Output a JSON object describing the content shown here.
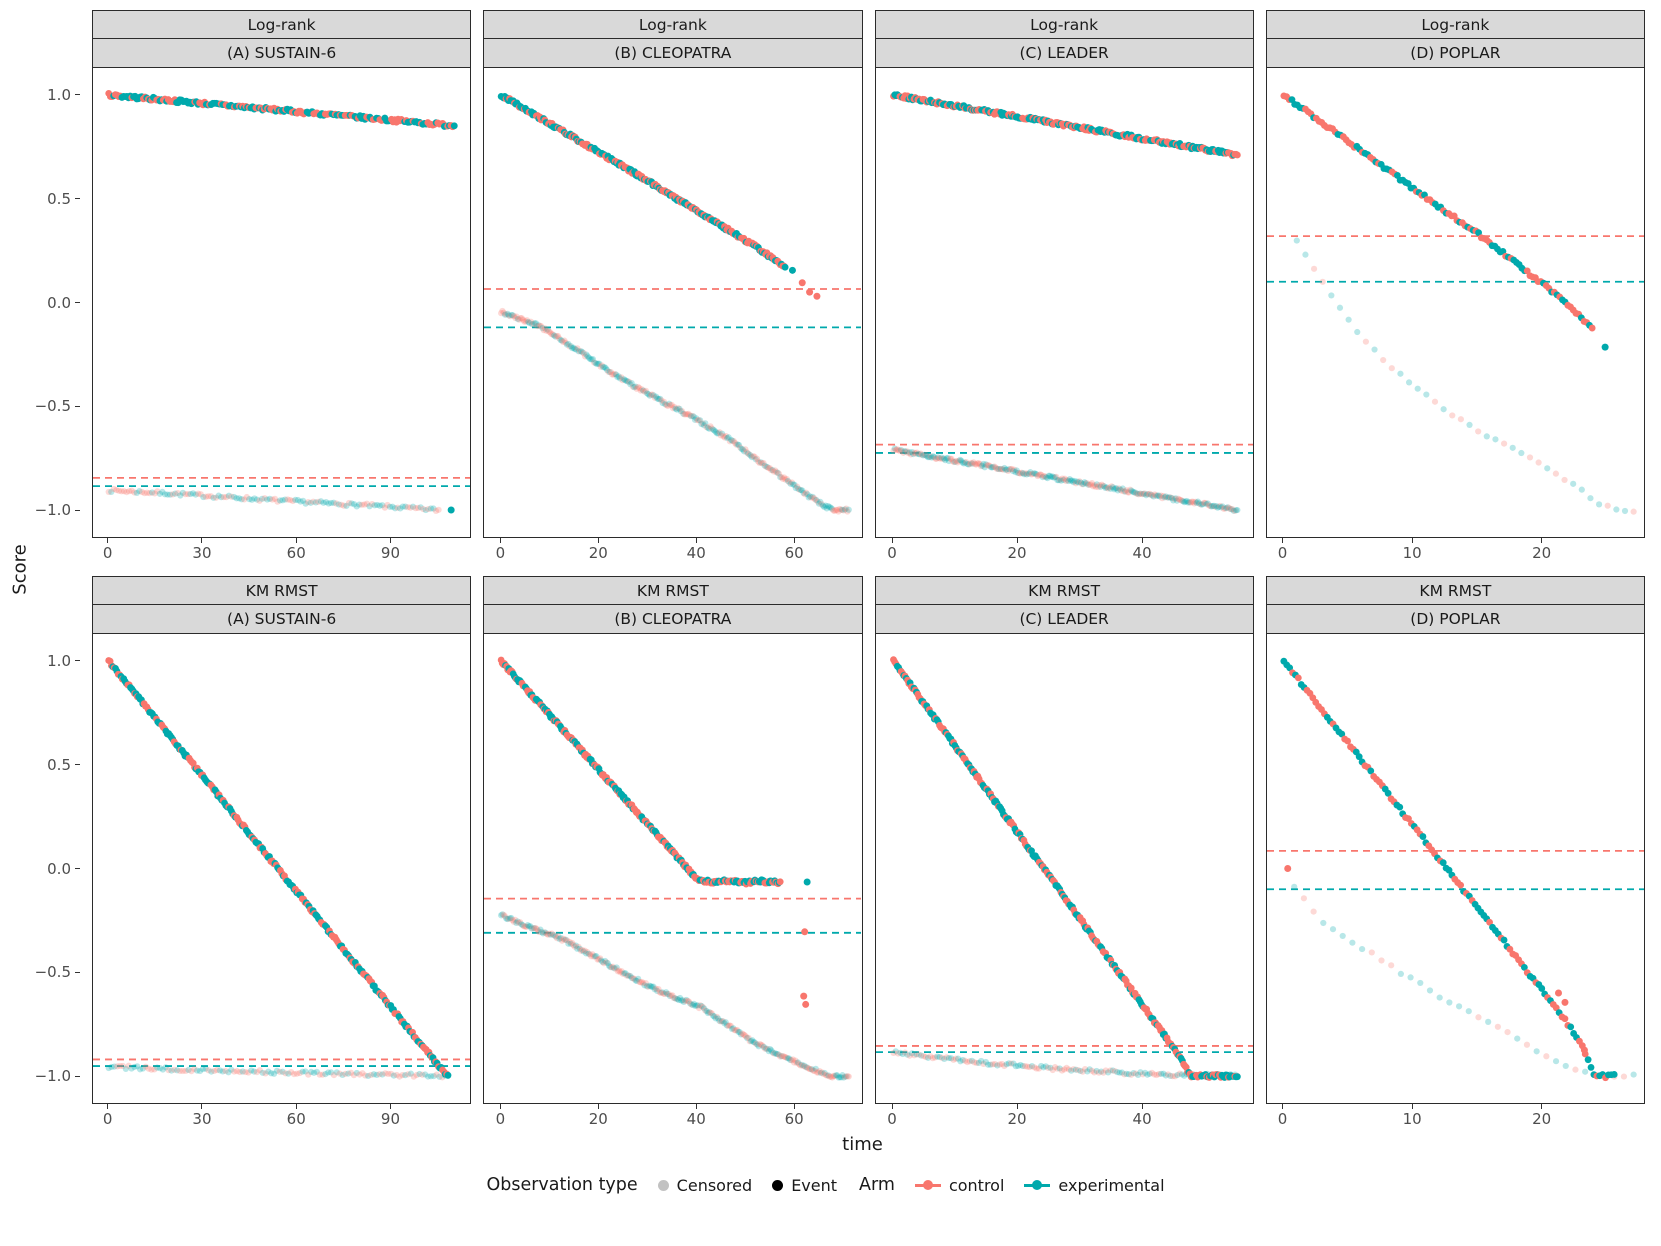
{
  "figure": {
    "y_axis_title": "Score",
    "x_axis_title": "time",
    "colors": {
      "control": "#F8766D",
      "experimental": "#00A9AC",
      "censored_grey": "#9A9A9A",
      "event_black": "#000000",
      "strip_bg": "#D9D9D9",
      "border": "#2B2B2B",
      "tick_text": "#4D4D4D"
    },
    "legend": {
      "obs_title": "Observation type",
      "censored_label": "Censored",
      "event_label": "Event",
      "arm_title": "Arm",
      "control_label": "control",
      "experimental_label": "experimental"
    }
  },
  "chart_data": {
    "type": "scatter",
    "title": "",
    "xlabel": "time",
    "ylabel": "Score",
    "grid": false,
    "legend_position": "bottom",
    "y_ticks": [
      1.0,
      0.5,
      0.0,
      -0.5,
      -1.0
    ],
    "y_range": [
      -1.13,
      1.13
    ],
    "panels": [
      {
        "method": "Log-rank",
        "trial": "(A) SUSTAIN-6",
        "x_range": [
          -5,
          115
        ],
        "x_ticks": [
          0,
          30,
          60,
          90
        ],
        "hline_control": -0.845,
        "hline_experimental": -0.885,
        "events": {
          "path": [
            [
              0,
              1.0
            ],
            [
              110,
              0.852
            ]
          ],
          "n": 210
        },
        "censored": {
          "path": [
            [
              0,
              -0.905
            ],
            [
              25,
              -0.925
            ],
            [
              55,
              -0.955
            ],
            [
              85,
              -0.98
            ],
            [
              105,
              -1.0
            ]
          ],
          "n": 130
        },
        "extra": [
          {
            "t": 109,
            "s": -1.0,
            "arm": "experimental",
            "type": "event"
          }
        ]
      },
      {
        "method": "Log-rank",
        "trial": "(B) CLEOPATRA",
        "x_range": [
          -3.5,
          73.5
        ],
        "x_ticks": [
          0,
          20,
          40,
          60
        ],
        "hline_control": 0.065,
        "hline_experimental": -0.12,
        "events": {
          "path": [
            [
              0,
              1.0
            ],
            [
              30,
              0.585
            ],
            [
              45,
              0.37
            ],
            [
              52,
              0.27
            ],
            [
              58,
              0.17
            ]
          ],
          "n": 235
        },
        "censored": {
          "path": [
            [
              0,
              -0.045
            ],
            [
              8,
              -0.115
            ],
            [
              16,
              -0.235
            ],
            [
              24,
              -0.36
            ],
            [
              32,
              -0.465
            ],
            [
              40,
              -0.565
            ],
            [
              47,
              -0.665
            ],
            [
              53,
              -0.77
            ],
            [
              58,
              -0.85
            ],
            [
              63,
              -0.935
            ],
            [
              66,
              -0.98
            ],
            [
              68,
              -1.0
            ],
            [
              71,
              -1.0
            ]
          ],
          "n": 270
        },
        "extra": [
          {
            "t": 59.5,
            "s": 0.155,
            "arm": "experimental",
            "type": "event"
          },
          {
            "t": 61.5,
            "s": 0.095,
            "arm": "control",
            "type": "event"
          },
          {
            "t": 63,
            "s": 0.05,
            "arm": "control",
            "type": "event"
          },
          {
            "t": 64.5,
            "s": 0.03,
            "arm": "control",
            "type": "event"
          }
        ]
      },
      {
        "method": "Log-rank",
        "trial": "(C) LEADER",
        "x_range": [
          -2.8,
          57.5
        ],
        "x_ticks": [
          0,
          20,
          40
        ],
        "hline_control": -0.685,
        "hline_experimental": -0.725,
        "events": {
          "path": [
            [
              0,
              1.0
            ],
            [
              55,
              0.71
            ]
          ],
          "n": 270
        },
        "censored": {
          "path": [
            [
              0,
              -0.71
            ],
            [
              55,
              -1.0
            ]
          ],
          "n": 280
        },
        "extra": []
      },
      {
        "method": "Log-rank",
        "trial": "(D) POPLAR",
        "x_range": [
          -1.3,
          27.8
        ],
        "x_ticks": [
          0,
          10,
          20
        ],
        "hline_control": 0.32,
        "hline_experimental": 0.1,
        "events": {
          "path": [
            [
              0,
              1.0
            ],
            [
              4,
              0.82
            ],
            [
              8,
              0.64
            ],
            [
              12,
              0.46
            ],
            [
              15,
              0.33
            ],
            [
              17,
              0.235
            ],
            [
              19,
              0.135
            ],
            [
              21,
              0.04
            ],
            [
              22.6,
              -0.05
            ],
            [
              23.8,
              -0.125
            ]
          ],
          "n": 115
        },
        "censored": {
          "path": [
            [
              1,
              0.3
            ],
            [
              3.5,
              0.05
            ],
            [
              6,
              -0.17
            ],
            [
              9,
              -0.35
            ],
            [
              12,
              -0.5
            ],
            [
              15,
              -0.62
            ],
            [
              18,
              -0.71
            ],
            [
              20,
              -0.79
            ],
            [
              21.5,
              -0.85
            ],
            [
              23,
              -0.905
            ],
            [
              24.3,
              -0.965
            ],
            [
              25.6,
              -1.0
            ],
            [
              27,
              -1.0
            ]
          ],
          "n": 40
        },
        "extra": [
          {
            "t": 24.8,
            "s": -0.215,
            "arm": "experimental",
            "type": "event"
          }
        ]
      },
      {
        "method": "KM RMST",
        "trial": "(A) SUSTAIN-6",
        "x_range": [
          -5,
          115
        ],
        "x_ticks": [
          0,
          30,
          60,
          90
        ],
        "hline_control": -0.92,
        "hline_experimental": -0.952,
        "events": {
          "path": [
            [
              0,
              1.0
            ],
            [
              105,
              -0.95
            ],
            [
              108,
              -1.0
            ]
          ],
          "n": 250
        },
        "censored": {
          "path": [
            [
              0,
              -0.955
            ],
            [
              35,
              -0.975
            ],
            [
              75,
              -0.99
            ],
            [
              108,
              -1.0
            ]
          ],
          "n": 120
        },
        "extra": []
      },
      {
        "method": "KM RMST",
        "trial": "(B) CLEOPATRA",
        "x_range": [
          -3.5,
          73.5
        ],
        "x_ticks": [
          0,
          20,
          40,
          60
        ],
        "hline_control": -0.145,
        "hline_experimental": -0.31,
        "events": {
          "path": [
            [
              0,
              1.0
            ],
            [
              40,
              -0.05
            ],
            [
              43,
              -0.068
            ],
            [
              46,
              -0.06
            ],
            [
              50,
              -0.068
            ],
            [
              53,
              -0.06
            ],
            [
              57,
              -0.07
            ]
          ],
          "n": 255
        },
        "censored": {
          "path": [
            [
              0,
              -0.225
            ],
            [
              6,
              -0.285
            ],
            [
              12,
              -0.335
            ],
            [
              18,
              -0.41
            ],
            [
              24,
              -0.49
            ],
            [
              30,
              -0.565
            ],
            [
              36,
              -0.625
            ],
            [
              41,
              -0.67
            ],
            [
              46,
              -0.75
            ],
            [
              51,
              -0.83
            ],
            [
              56,
              -0.89
            ],
            [
              60,
              -0.93
            ],
            [
              64,
              -0.97
            ],
            [
              67,
              -1.0
            ],
            [
              71,
              -1.0
            ]
          ],
          "n": 275
        },
        "extra": [
          {
            "t": 62.5,
            "s": -0.065,
            "arm": "experimental",
            "type": "event"
          },
          {
            "t": 62,
            "s": -0.305,
            "arm": "control",
            "type": "event"
          },
          {
            "t": 61.8,
            "s": -0.615,
            "arm": "control",
            "type": "event"
          },
          {
            "t": 62.2,
            "s": -0.655,
            "arm": "control",
            "type": "event"
          }
        ]
      },
      {
        "method": "KM RMST",
        "trial": "(C) LEADER",
        "x_range": [
          -2.8,
          57.5
        ],
        "x_ticks": [
          0,
          20,
          40
        ],
        "hline_control": -0.855,
        "hline_experimental": -0.885,
        "events": {
          "path": [
            [
              0,
              1.0
            ],
            [
              43,
              -0.79
            ],
            [
              46,
              -0.92
            ],
            [
              47.5,
              -1.0
            ],
            [
              55,
              -1.0
            ]
          ],
          "n": 270
        },
        "censored": {
          "path": [
            [
              0,
              -0.885
            ],
            [
              12,
              -0.93
            ],
            [
              26,
              -0.965
            ],
            [
              40,
              -0.99
            ],
            [
              55,
              -1.0
            ]
          ],
          "n": 150
        },
        "extra": []
      },
      {
        "method": "KM RMST",
        "trial": "(D) POPLAR",
        "x_range": [
          -1.3,
          27.8
        ],
        "x_ticks": [
          0,
          10,
          20
        ],
        "hline_control": 0.085,
        "hline_experimental": -0.1,
        "events": {
          "path": [
            [
              0,
              1.0
            ],
            [
              21.5,
              -0.71
            ],
            [
              23,
              -0.85
            ],
            [
              24,
              -1.0
            ],
            [
              25.5,
              -1.0
            ]
          ],
          "n": 115
        },
        "censored": {
          "path": [
            [
              0.8,
              -0.085
            ],
            [
              3,
              -0.26
            ],
            [
              6,
              -0.38
            ],
            [
              9,
              -0.5
            ],
            [
              12,
              -0.615
            ],
            [
              15,
              -0.715
            ],
            [
              17.5,
              -0.79
            ],
            [
              19.5,
              -0.875
            ],
            [
              21,
              -0.93
            ],
            [
              22.5,
              -0.965
            ],
            [
              24,
              -0.99
            ],
            [
              25.5,
              -1.0
            ],
            [
              27,
              -1.0
            ]
          ],
          "n": 36
        },
        "extra": [
          {
            "t": 0.3,
            "s": 0.0,
            "arm": "control",
            "type": "event"
          },
          {
            "t": 21.2,
            "s": -0.6,
            "arm": "control",
            "type": "event"
          },
          {
            "t": 21.7,
            "s": -0.645,
            "arm": "control",
            "type": "event"
          },
          {
            "t": 23.2,
            "s": -0.875,
            "arm": "control",
            "type": "event"
          }
        ]
      }
    ]
  }
}
